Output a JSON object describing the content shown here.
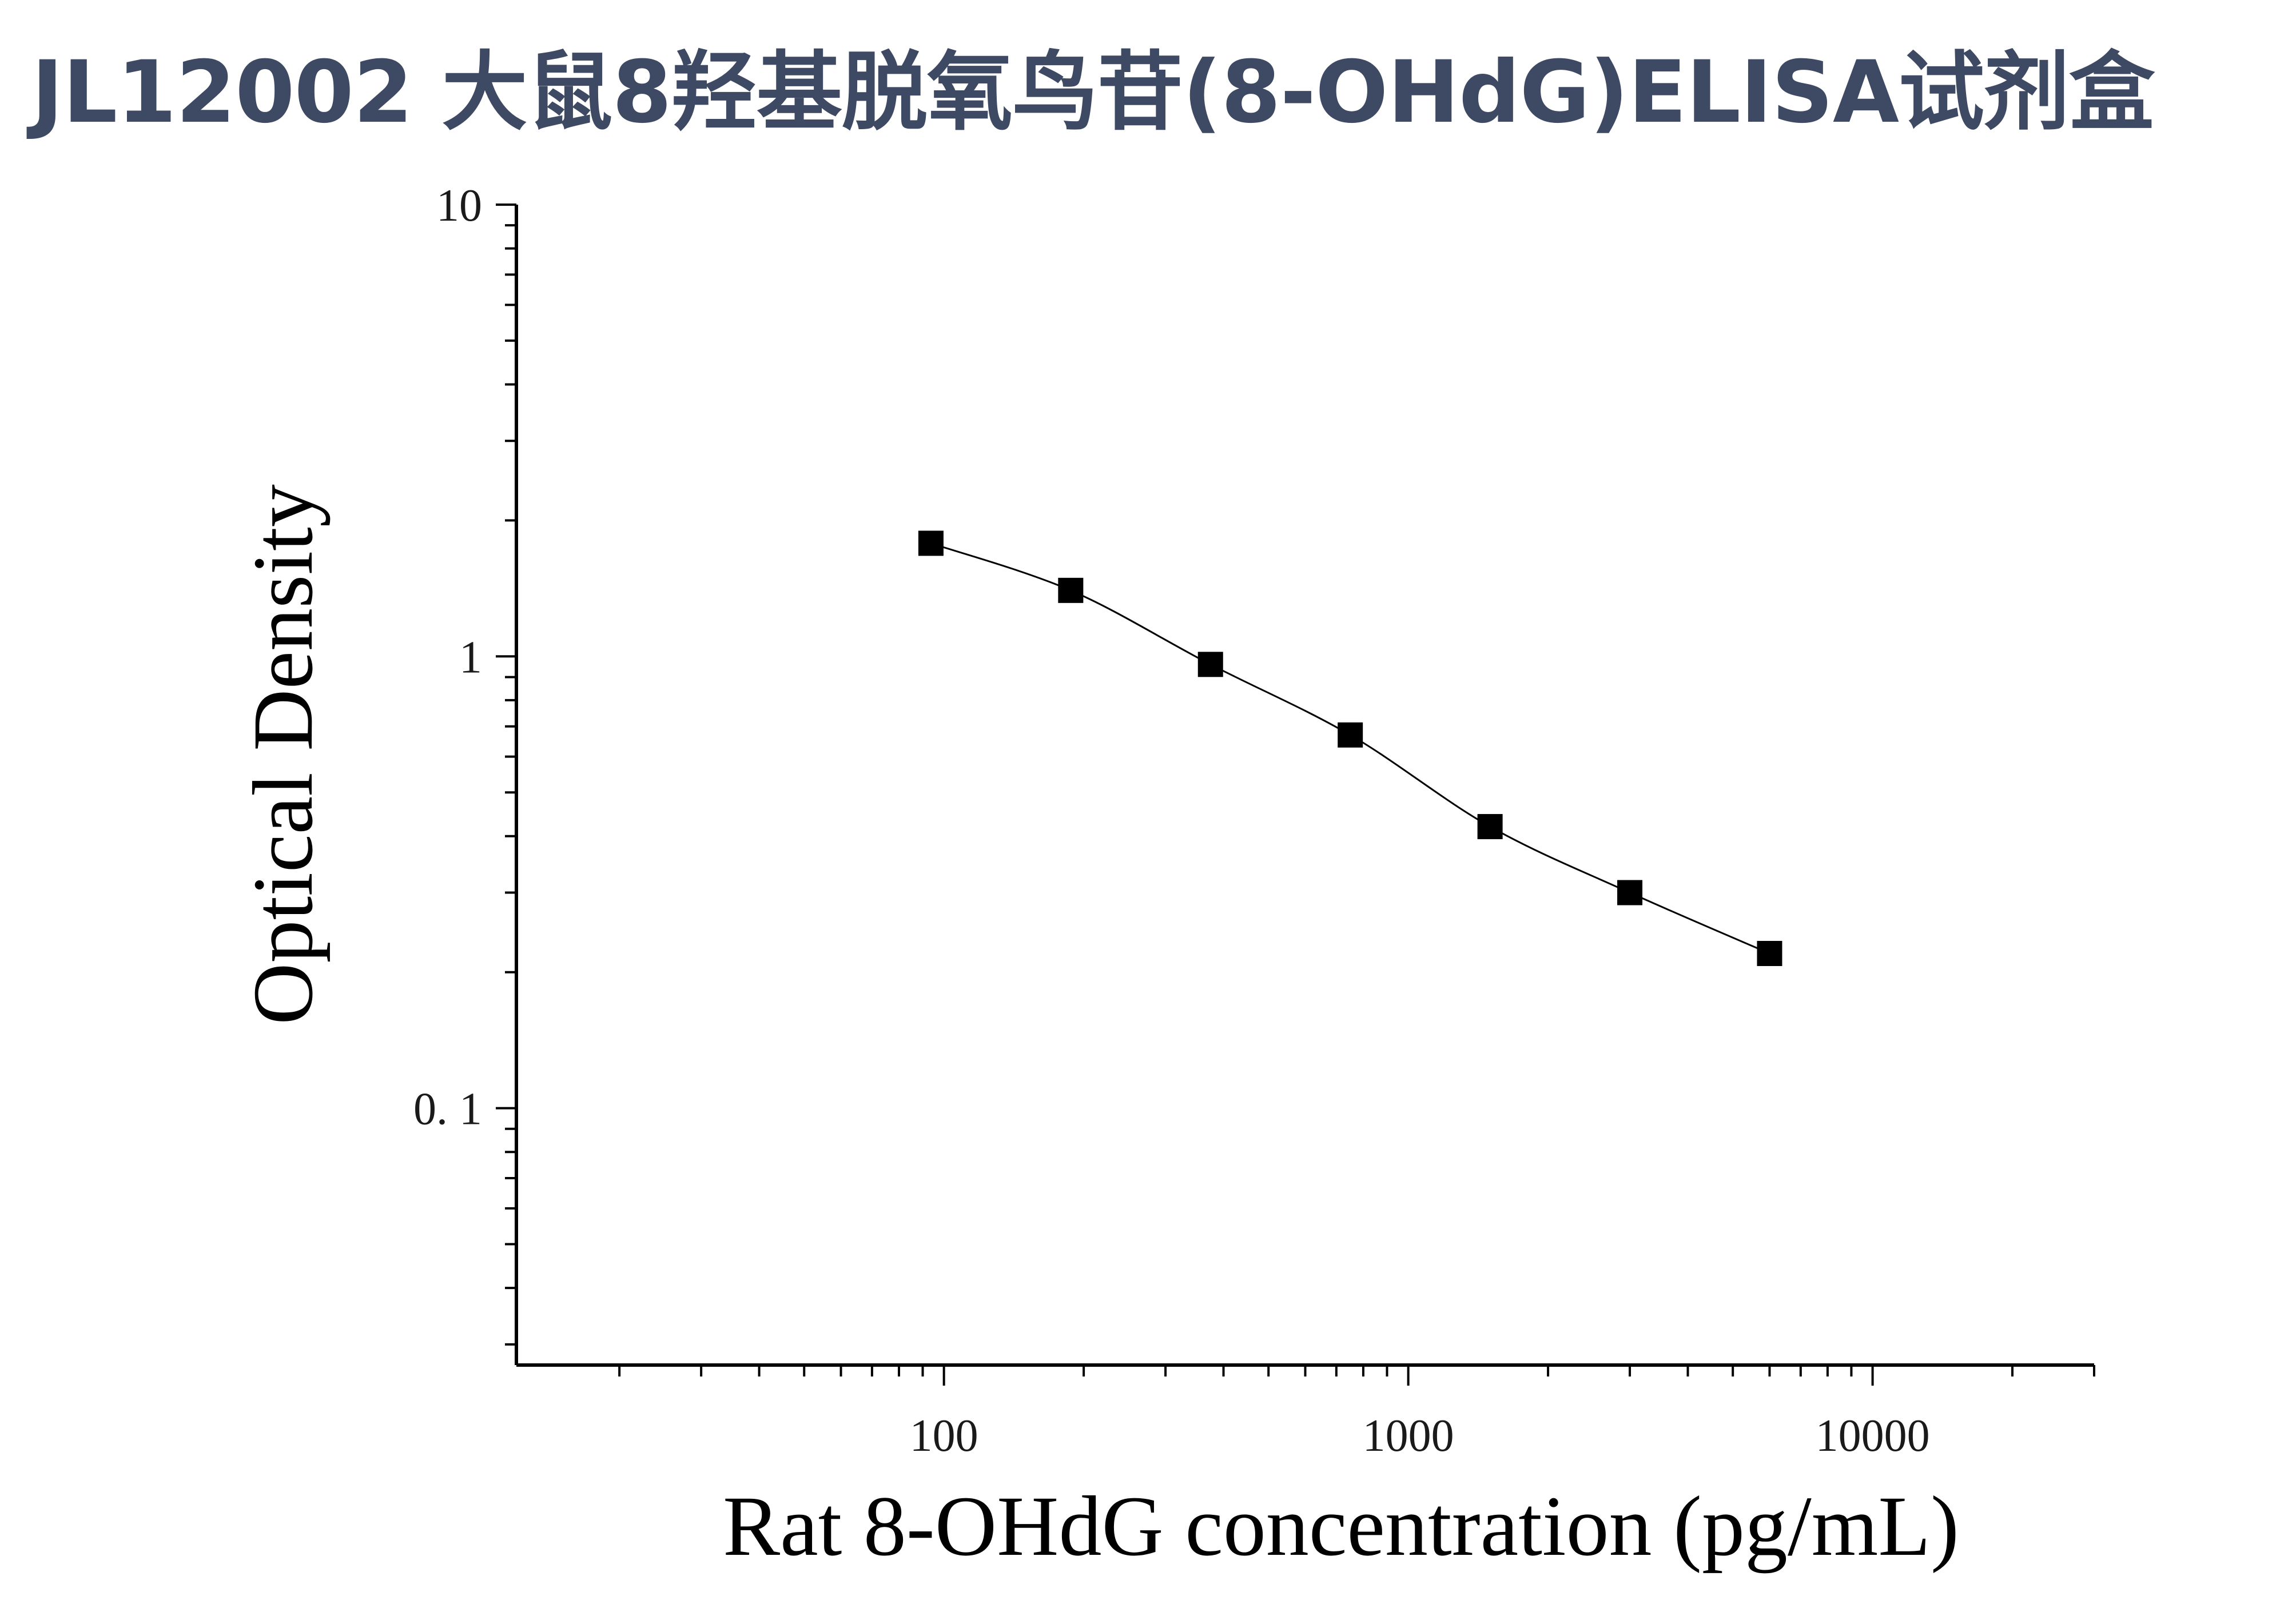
{
  "title": "JL12002 大鼠8羟基脱氧鸟苷(8-OHdG)ELISA试剂盒",
  "chart_data": {
    "type": "scatter",
    "title": "JL12002 大鼠8羟基脱氧鸟苷(8-OHdG)ELISA试剂盒",
    "xlabel": "Rat 8-OHdG concentration (pg/mL)",
    "ylabel": "Optical Density",
    "x_scale": "log",
    "y_scale": "log",
    "xlim": [
      12,
      30000
    ],
    "ylim": [
      0.027,
      10
    ],
    "x_ticks": [
      "100",
      "1000",
      "10000"
    ],
    "y_ticks": [
      "0. 1",
      "1",
      "10"
    ],
    "grid": false,
    "fit_line": true,
    "series": [
      {
        "marker": "square",
        "color": "#000000",
        "x": [
          93.75,
          187.5,
          375,
          750,
          1500,
          3000,
          6000
        ],
        "y": [
          1.78,
          1.4,
          0.96,
          0.67,
          0.42,
          0.3,
          0.22
        ]
      }
    ]
  }
}
